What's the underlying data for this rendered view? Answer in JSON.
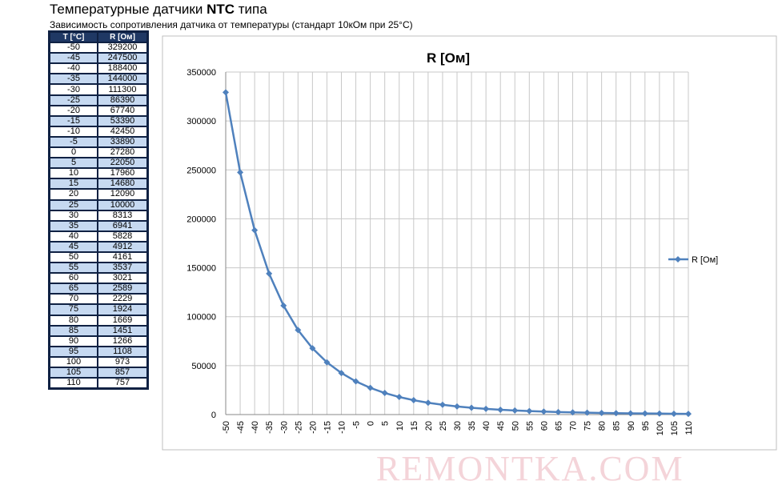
{
  "header": {
    "title": [
      "Температурные датчики ",
      "NTC",
      " типа"
    ],
    "subtitle": "Зависимость сопротивления датчика от температуры  (стандарт 10кОм при 25°С)"
  },
  "table": {
    "header": [
      "T [°C]",
      "R [Ом]"
    ],
    "rows": [
      [
        "-50",
        "329200"
      ],
      [
        "-45",
        "247500"
      ],
      [
        "-40",
        "188400"
      ],
      [
        "-35",
        "144000"
      ],
      [
        "-30",
        "111300"
      ],
      [
        "-25",
        "86390"
      ],
      [
        "-20",
        "67740"
      ],
      [
        "-15",
        "53390"
      ],
      [
        "-10",
        "42450"
      ],
      [
        "-5",
        "33890"
      ],
      [
        "0",
        "27280"
      ],
      [
        "5",
        "22050"
      ],
      [
        "10",
        "17960"
      ],
      [
        "15",
        "14680"
      ],
      [
        "20",
        "12090"
      ],
      [
        "25",
        "10000"
      ],
      [
        "30",
        "8313"
      ],
      [
        "35",
        "6941"
      ],
      [
        "40",
        "5828"
      ],
      [
        "45",
        "4912"
      ],
      [
        "50",
        "4161"
      ],
      [
        "55",
        "3537"
      ],
      [
        "60",
        "3021"
      ],
      [
        "65",
        "2589"
      ],
      [
        "70",
        "2229"
      ],
      [
        "75",
        "1924"
      ],
      [
        "80",
        "1669"
      ],
      [
        "85",
        "1451"
      ],
      [
        "90",
        "1266"
      ],
      [
        "95",
        "1108"
      ],
      [
        "100",
        "973"
      ],
      [
        "105",
        "857"
      ],
      [
        "110",
        "757"
      ]
    ]
  },
  "chart_data": {
    "type": "line",
    "title": "R [Ом]",
    "x": [
      -50,
      -45,
      -40,
      -35,
      -30,
      -25,
      -20,
      -15,
      -10,
      -5,
      0,
      5,
      10,
      15,
      20,
      25,
      30,
      35,
      40,
      45,
      50,
      55,
      60,
      65,
      70,
      75,
      80,
      85,
      90,
      95,
      100,
      105,
      110
    ],
    "xlim": [
      -50,
      110
    ],
    "xticks": [
      -50,
      -45,
      -40,
      -35,
      -30,
      -25,
      -20,
      -15,
      -10,
      -5,
      0,
      5,
      10,
      15,
      20,
      25,
      30,
      35,
      40,
      45,
      50,
      55,
      60,
      65,
      70,
      75,
      80,
      85,
      90,
      95,
      100,
      105,
      110
    ],
    "series": [
      {
        "name": "R [Ом]",
        "color": "#4f81bd",
        "values": [
          329200,
          247500,
          188400,
          144000,
          111300,
          86390,
          67740,
          53390,
          42450,
          33890,
          27280,
          22050,
          17960,
          14680,
          12090,
          10000,
          8313,
          6941,
          5828,
          4912,
          4161,
          3537,
          3021,
          2589,
          2229,
          1924,
          1669,
          1451,
          1266,
          1108,
          973,
          857,
          757
        ]
      }
    ],
    "ylim": [
      0,
      350000
    ],
    "yticks": [
      0,
      50000,
      100000,
      150000,
      200000,
      250000,
      300000,
      350000
    ],
    "grid": true,
    "legend": "right"
  },
  "watermark": "REMONTKA.COM"
}
